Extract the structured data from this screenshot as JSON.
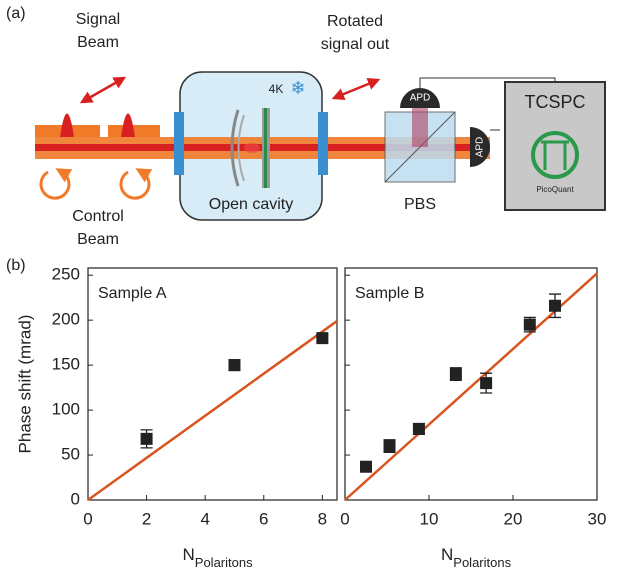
{
  "panel_labels": [
    "(a)",
    "(b)"
  ],
  "diagram": {
    "signal_beam": [
      "Signal",
      "Beam"
    ],
    "control_beam": [
      "Control",
      "Beam"
    ],
    "rotated_signal": [
      "Rotated",
      "signal out"
    ],
    "temperature": "4K",
    "cavity": "Open cavity",
    "pbs": "PBS",
    "apd_top": "APD",
    "apd_right": "APD",
    "tcspc": "TCSPC",
    "brand": "PicoQuant"
  },
  "ylabel": "Phase shift (mrad)",
  "chart_data": [
    {
      "type": "scatter",
      "title": "Sample A",
      "xlabel": "N",
      "xlabel_sub": "Polaritons",
      "x": [
        2,
        5,
        8
      ],
      "values": [
        68,
        150,
        180
      ],
      "errors": [
        10,
        6,
        4
      ],
      "color": "#222222",
      "fit": {
        "x": [
          0,
          8.5
        ],
        "y": [
          0,
          199
        ],
        "color": "#d9541e"
      },
      "xlim": [
        0,
        8.5
      ],
      "xticks": [
        0,
        2,
        4,
        6,
        8
      ],
      "ylim": [
        0,
        258
      ],
      "yticks": [
        0,
        50,
        100,
        150,
        200,
        250
      ],
      "ytick_labels": true
    },
    {
      "type": "scatter",
      "title": "Sample B",
      "xlabel": "N",
      "xlabel_sub": "Polaritons",
      "x": [
        2.5,
        5.3,
        8.8,
        13.2,
        16.8,
        22,
        25
      ],
      "values": [
        37,
        60,
        79,
        140,
        130,
        195,
        216
      ],
      "errors": [
        4,
        7,
        6,
        7,
        11,
        8,
        13
      ],
      "color": "#222222",
      "fit": {
        "x": [
          0,
          30
        ],
        "y": [
          0,
          252
        ],
        "color": "#d9541e"
      },
      "xlim": [
        0,
        30
      ],
      "xticks": [
        0,
        10,
        20,
        30
      ],
      "ylim": [
        0,
        258
      ],
      "yticks": [
        0,
        50,
        100,
        150,
        200,
        250
      ],
      "ytick_labels": false
    }
  ]
}
